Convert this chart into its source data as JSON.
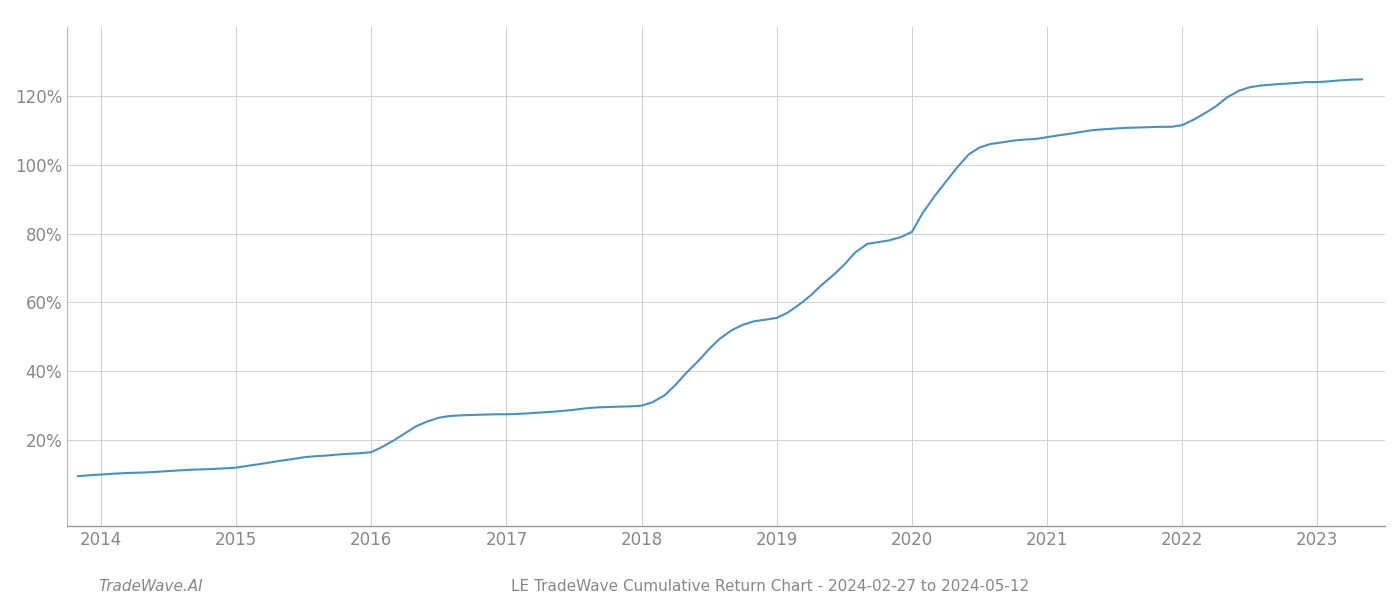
{
  "title": "LE TradeWave Cumulative Return Chart - 2024-02-27 to 2024-05-12",
  "watermark": "TradeWave.AI",
  "line_color": "#4a90c4",
  "line_width": 1.5,
  "background_color": "#ffffff",
  "grid_color": "#cccccc",
  "x_values": [
    2013.83,
    2013.92,
    2014.0,
    2014.08,
    2014.17,
    2014.25,
    2014.33,
    2014.42,
    2014.5,
    2014.58,
    2014.67,
    2014.75,
    2014.83,
    2014.92,
    2015.0,
    2015.08,
    2015.17,
    2015.25,
    2015.33,
    2015.42,
    2015.5,
    2015.58,
    2015.67,
    2015.75,
    2015.83,
    2015.92,
    2016.0,
    2016.08,
    2016.17,
    2016.25,
    2016.33,
    2016.42,
    2016.5,
    2016.58,
    2016.67,
    2016.75,
    2016.83,
    2016.92,
    2017.0,
    2017.08,
    2017.17,
    2017.25,
    2017.33,
    2017.42,
    2017.5,
    2017.58,
    2017.67,
    2017.75,
    2017.83,
    2017.92,
    2018.0,
    2018.08,
    2018.17,
    2018.25,
    2018.33,
    2018.42,
    2018.5,
    2018.58,
    2018.67,
    2018.75,
    2018.83,
    2018.92,
    2019.0,
    2019.08,
    2019.17,
    2019.25,
    2019.33,
    2019.42,
    2019.5,
    2019.58,
    2019.67,
    2019.75,
    2019.83,
    2019.92,
    2020.0,
    2020.08,
    2020.17,
    2020.25,
    2020.33,
    2020.42,
    2020.5,
    2020.58,
    2020.67,
    2020.75,
    2020.83,
    2020.92,
    2021.0,
    2021.08,
    2021.17,
    2021.25,
    2021.33,
    2021.42,
    2021.5,
    2021.58,
    2021.67,
    2021.75,
    2021.83,
    2021.92,
    2022.0,
    2022.08,
    2022.17,
    2022.25,
    2022.33,
    2022.42,
    2022.5,
    2022.58,
    2022.67,
    2022.75,
    2022.83,
    2022.92,
    2023.0,
    2023.08,
    2023.17,
    2023.25,
    2023.33
  ],
  "y_values": [
    9.5,
    9.8,
    10.0,
    10.2,
    10.4,
    10.5,
    10.6,
    10.8,
    11.0,
    11.2,
    11.4,
    11.5,
    11.6,
    11.8,
    12.0,
    12.5,
    13.0,
    13.5,
    14.0,
    14.5,
    15.0,
    15.3,
    15.5,
    15.8,
    16.0,
    16.2,
    16.5,
    18.0,
    20.0,
    22.0,
    24.0,
    25.5,
    26.5,
    27.0,
    27.2,
    27.3,
    27.4,
    27.5,
    27.5,
    27.6,
    27.8,
    28.0,
    28.2,
    28.5,
    28.8,
    29.2,
    29.5,
    29.6,
    29.7,
    29.8,
    30.0,
    31.0,
    33.0,
    36.0,
    39.5,
    43.0,
    46.5,
    49.5,
    52.0,
    53.5,
    54.5,
    55.0,
    55.5,
    57.0,
    59.5,
    62.0,
    65.0,
    68.0,
    71.0,
    74.5,
    77.0,
    77.5,
    78.0,
    79.0,
    80.5,
    86.0,
    91.0,
    95.0,
    99.0,
    103.0,
    105.0,
    106.0,
    106.5,
    107.0,
    107.3,
    107.5,
    108.0,
    108.5,
    109.0,
    109.5,
    110.0,
    110.3,
    110.5,
    110.7,
    110.8,
    110.9,
    111.0,
    111.0,
    111.5,
    113.0,
    115.0,
    117.0,
    119.5,
    121.5,
    122.5,
    123.0,
    123.3,
    123.5,
    123.7,
    124.0,
    124.0,
    124.2,
    124.5,
    124.7,
    124.8
  ],
  "xlim": [
    2013.75,
    2023.5
  ],
  "ylim": [
    -5,
    140
  ],
  "yticks": [
    20,
    40,
    60,
    80,
    100,
    120
  ],
  "xticks": [
    2014,
    2015,
    2016,
    2017,
    2018,
    2019,
    2020,
    2021,
    2022,
    2023
  ],
  "tick_label_color": "#888888",
  "tick_label_fontsize": 12,
  "footer_fontsize": 11,
  "footer_color": "#888888"
}
